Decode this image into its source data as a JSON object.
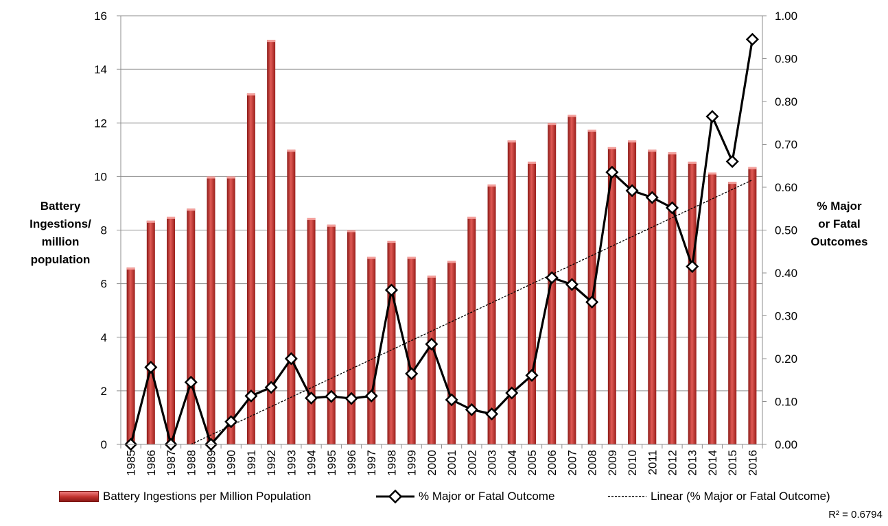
{
  "chart_data": {
    "type": "bar",
    "categories": [
      "1985",
      "1986",
      "1987",
      "1988",
      "1989",
      "1990",
      "1991",
      "1992",
      "1993",
      "1994",
      "1995",
      "1996",
      "1997",
      "1998",
      "1999",
      "2000",
      "2001",
      "2002",
      "2003",
      "2004",
      "2005",
      "2006",
      "2007",
      "2008",
      "2009",
      "2010",
      "2011",
      "2012",
      "2013",
      "2014",
      "2015",
      "2016"
    ],
    "series": [
      {
        "name": "Battery Ingestions per Million Population",
        "type": "bar",
        "axis": "left",
        "color": "#c0302c",
        "values": [
          6.6,
          8.35,
          8.5,
          8.8,
          10.0,
          10.0,
          13.1,
          15.1,
          11.0,
          8.45,
          8.2,
          8.0,
          7.0,
          7.6,
          7.0,
          6.3,
          6.85,
          8.5,
          9.7,
          11.35,
          10.55,
          12.0,
          12.3,
          11.75,
          11.1,
          11.35,
          11.0,
          10.9,
          10.55,
          10.15,
          9.8,
          10.35
        ]
      },
      {
        "name": "% Major or Fatal Outcome",
        "type": "line",
        "axis": "right",
        "color": "#000000",
        "values": [
          0.0,
          0.18,
          0.0,
          0.145,
          0.0,
          0.053,
          0.113,
          0.133,
          0.2,
          0.108,
          0.112,
          0.107,
          0.113,
          0.36,
          0.165,
          0.234,
          0.104,
          0.081,
          0.071,
          0.12,
          0.161,
          0.389,
          0.373,
          0.332,
          0.635,
          0.592,
          0.576,
          0.552,
          0.415,
          0.765,
          0.66,
          0.945
        ]
      },
      {
        "name": "Linear (% Major or Fatal Outcome)",
        "type": "trendline",
        "axis": "right",
        "color": "#000000",
        "start": {
          "x": "1988",
          "y": 0.0
        },
        "end": {
          "x": "2016",
          "y": 0.617
        }
      }
    ],
    "yleft": {
      "label": "Battery Ingestions/ million population",
      "lim": [
        0,
        16
      ],
      "ticks": [
        "0",
        "2",
        "4",
        "6",
        "8",
        "10",
        "12",
        "14",
        "16"
      ]
    },
    "yright": {
      "label": "% Major or Fatal Outcomes",
      "lim": [
        0,
        1.0
      ],
      "ticks": [
        "0.00",
        "0.10",
        "0.20",
        "0.30",
        "0.40",
        "0.50",
        "0.60",
        "0.70",
        "0.80",
        "0.90",
        "1.00"
      ]
    },
    "grid": true,
    "legend_position": "bottom",
    "annotation": "R² = 0.6794"
  },
  "legend": {
    "bars": "Battery Ingestions per Million Population",
    "line": "% Major or Fatal Outcome",
    "trend": "Linear (% Major or Fatal Outcome)"
  },
  "labels": {
    "left_title_lines": [
      "Battery",
      "Ingestions/",
      "million",
      "population"
    ],
    "right_title_lines": [
      "% Major",
      "or Fatal",
      "Outcomes"
    ],
    "r2": "R² = 0.6794"
  }
}
